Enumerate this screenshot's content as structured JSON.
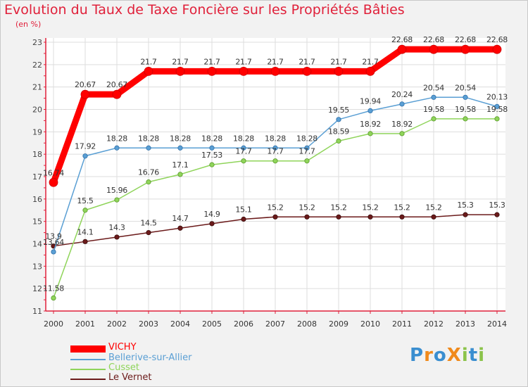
{
  "title": "Evolution du Taux de Taxe Foncière sur les Propriétés Bâties",
  "subtitle": "(en %)",
  "chart_data": {
    "type": "line",
    "title": "Evolution du Taux de Taxe Foncière sur les Propriétés Bâties",
    "ylabel": "(en %)",
    "xlabel": "",
    "x": [
      "2000",
      "2001",
      "2002",
      "2003",
      "2004",
      "2005",
      "2006",
      "2007",
      "2008",
      "2009",
      "2010",
      "2011",
      "2012",
      "2013",
      "2014"
    ],
    "ylim": [
      11,
      23
    ],
    "yticks": [
      11,
      12,
      13,
      14,
      15,
      16,
      17,
      18,
      19,
      20,
      21,
      22,
      23
    ],
    "grid": true,
    "legend_position": "bottom-left",
    "series": [
      {
        "name": "VICHY",
        "color": "#ff0000",
        "values": [
          16.74,
          20.67,
          20.67,
          21.7,
          21.7,
          21.7,
          21.7,
          21.7,
          21.7,
          21.7,
          21.7,
          22.68,
          22.68,
          22.68,
          22.68
        ],
        "labels": [
          "16.74",
          "20.67",
          "20.67",
          "21.7",
          "21.7",
          "21.7",
          "21.7",
          "21.7",
          "21.7",
          "21.7",
          "21.7",
          "22.68",
          "22.68",
          "22.68",
          "22.68"
        ]
      },
      {
        "name": "Bellerive-sur-Allier",
        "color": "#5a9fd4",
        "values": [
          13.64,
          17.92,
          18.28,
          18.28,
          18.28,
          18.28,
          18.28,
          18.28,
          18.28,
          19.55,
          19.94,
          20.24,
          20.54,
          20.54,
          20.13
        ],
        "labels": [
          "13.64",
          "17.92",
          "18.28",
          "18.28",
          "18.28",
          "18.28",
          "18.28",
          "18.28",
          "18.28",
          "19.55",
          "19.94",
          "20.24",
          "20.54",
          "20.54",
          "20.13"
        ]
      },
      {
        "name": "Cusset",
        "color": "#8fd45a",
        "values": [
          11.58,
          15.5,
          15.96,
          16.76,
          17.1,
          17.53,
          17.7,
          17.7,
          17.7,
          18.59,
          18.92,
          18.92,
          19.58,
          19.58,
          19.58
        ],
        "labels": [
          "11.58",
          "15.5",
          "15.96",
          "16.76",
          "17.1",
          "17.53",
          "17.7",
          "17.7",
          "17.7",
          "18.59",
          "18.92",
          "18.92",
          "19.58",
          "19.58",
          "19.58"
        ]
      },
      {
        "name": "Le Vernet",
        "color": "#6b1a1a",
        "values": [
          13.9,
          14.1,
          14.3,
          14.5,
          14.7,
          14.9,
          15.1,
          15.2,
          15.2,
          15.2,
          15.2,
          15.2,
          15.2,
          15.3,
          15.3
        ],
        "labels": [
          "13.9",
          "14.1",
          "14.3",
          "14.5",
          "14.7",
          "14.9",
          "15.1",
          "15.2",
          "15.2",
          "15.2",
          "15.2",
          "15.2",
          "15.2",
          "15.3",
          "15.3"
        ]
      }
    ]
  },
  "legend": {
    "items": [
      "VICHY",
      "Bellerive-sur-Allier",
      "Cusset",
      "Le Vernet"
    ]
  },
  "logo": {
    "text": "ProXiti",
    "letters": [
      "P",
      "r",
      "o",
      "X",
      "i",
      "t",
      "i"
    ],
    "colors": [
      "#3a8ed0",
      "#f08a1c",
      "#3a8ed0",
      "#f08a1c",
      "#8bc34a",
      "#3a8ed0",
      "#8bc34a"
    ]
  }
}
